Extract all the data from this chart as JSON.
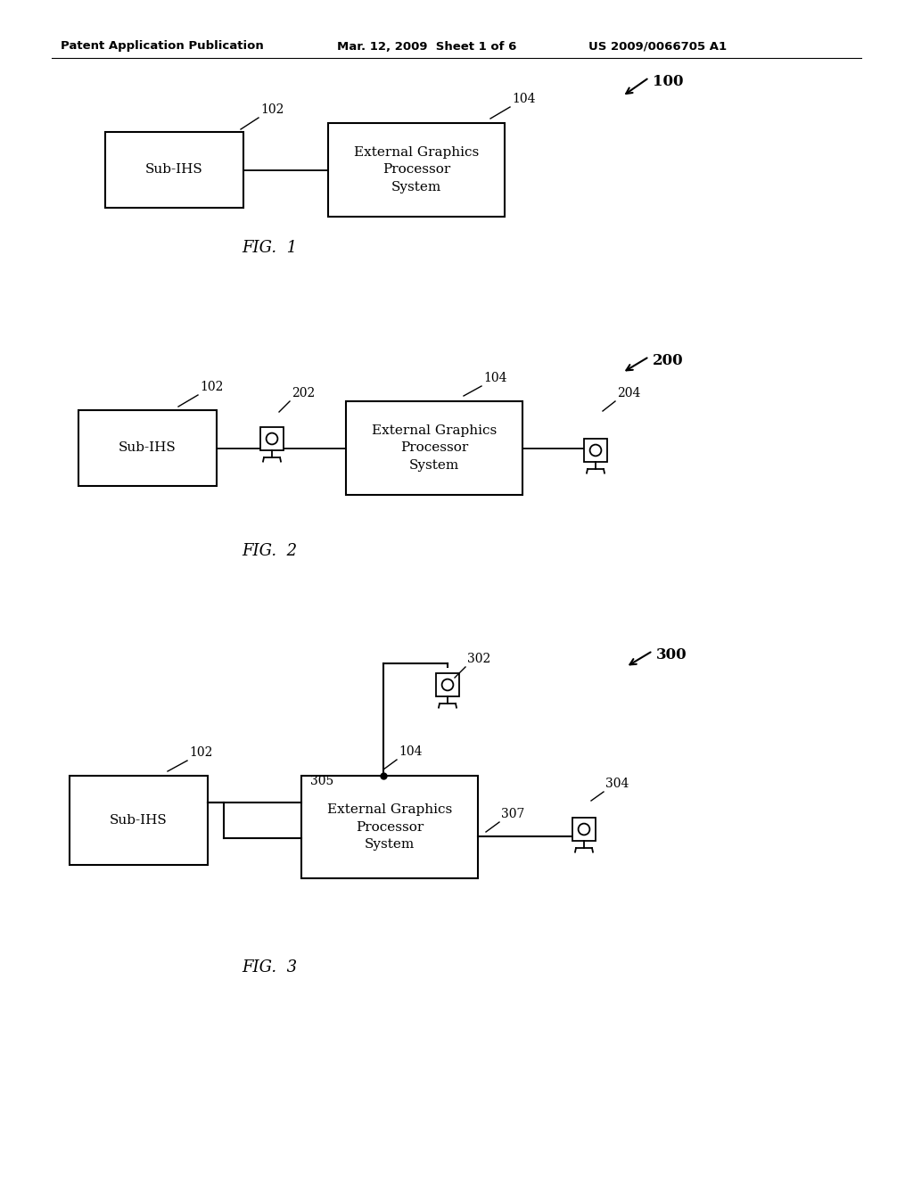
{
  "bg_color": "#ffffff",
  "header_left": "Patent Application Publication",
  "header_mid": "Mar. 12, 2009  Sheet 1 of 6",
  "header_right": "US 2009/0066705 A1"
}
